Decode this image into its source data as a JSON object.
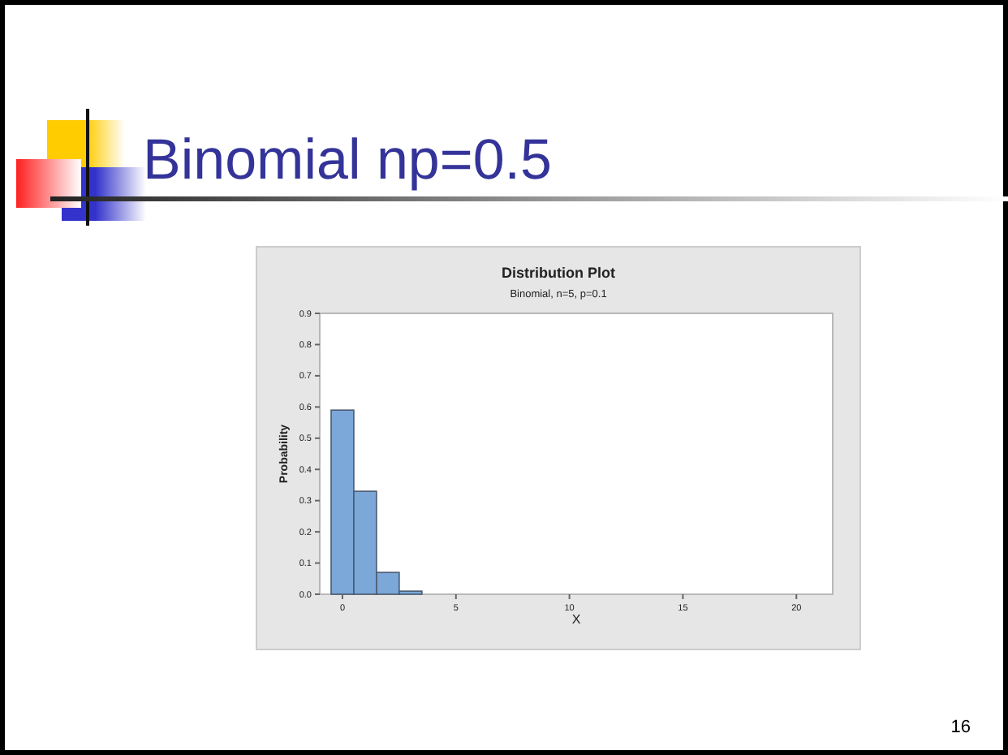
{
  "chart_data": {
    "type": "histogram",
    "title": "Distribution Plot",
    "subtitle": "Binomial, n=5, p=0.1",
    "xlabel": "X",
    "ylabel": "Probability",
    "bins": [
      -0.5,
      0.5,
      1.5,
      2.5,
      3.5,
      4.5,
      5.5
    ],
    "values": [
      0.59,
      0.33,
      0.07,
      0.01,
      0,
      0
    ],
    "color": "#7ba7d9",
    "xlim": [
      -1,
      21.6
    ],
    "xticks": [
      0,
      5,
      10,
      15,
      20
    ],
    "ylim": [
      0,
      0.9
    ],
    "yticks": [
      {
        "value": 0,
        "label": "0.0"
      },
      0.1,
      0.2,
      0.3,
      0.4,
      0.5,
      0.6,
      0.7,
      0.8,
      0.9
    ],
    "grid": false,
    "annotations": [
      "Binomial np=0.5",
      "16"
    ]
  }
}
